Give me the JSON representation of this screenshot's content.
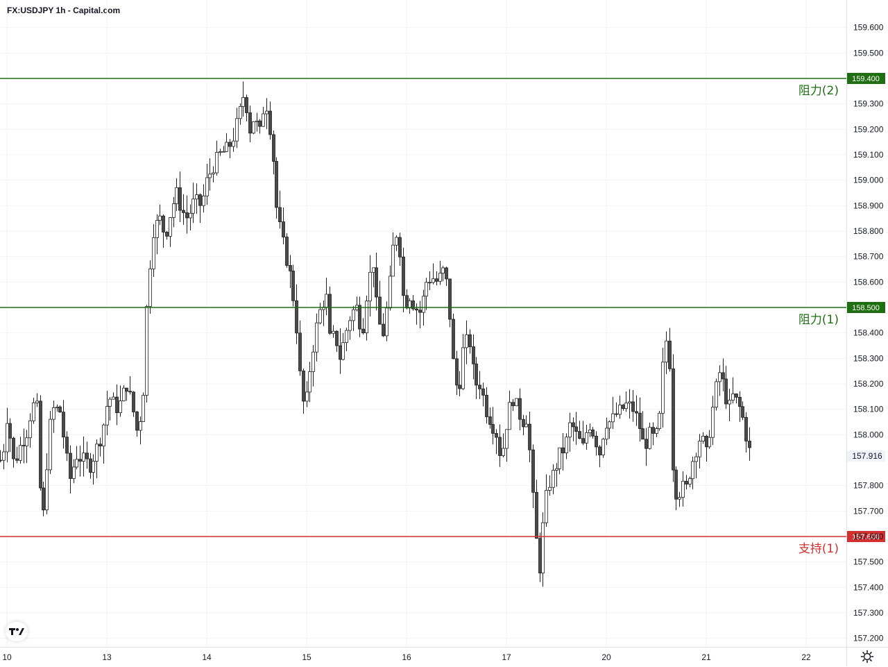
{
  "title": "FX:USDJPY 1h - Capital.com",
  "colors": {
    "resistance": "#1f6e12",
    "support": "#d32f2f",
    "candle_up": "#ffffff",
    "candle_down": "#4a4a4a",
    "wick": "#1e1e1e",
    "grid": "#f0f3fa",
    "price_badge_text": "#131722"
  },
  "icons": {
    "logo": "tradingview-logo-icon",
    "settings": "settings-gear-icon"
  },
  "chart_data": {
    "type": "candlestick",
    "symbol": "USDJPY",
    "timeframe": "1h",
    "ylim": [
      157.16,
      159.7
    ],
    "y_ticks": [
      "157.200",
      "157.300",
      "157.400",
      "157.500",
      "157.600",
      "157.700",
      "157.800",
      "158.000",
      "158.100",
      "158.200",
      "158.300",
      "158.400",
      "158.600",
      "158.700",
      "158.800",
      "158.900",
      "159.000",
      "159.100",
      "159.200",
      "159.300",
      "159.500",
      "159.600"
    ],
    "x_ticks": [
      "10",
      "13",
      "14",
      "15",
      "16",
      "17",
      "20",
      "21",
      "22"
    ],
    "current_price": "157.916",
    "levels": [
      {
        "name": "阻力(2)",
        "price": "159.400",
        "kind": "resistance"
      },
      {
        "name": "阻力(1)",
        "price": "158.500",
        "kind": "resistance"
      },
      {
        "name": "支持(1)",
        "price": "157.600",
        "kind": "support"
      }
    ],
    "ohlc_anchors": [
      [
        0,
        157.9
      ],
      [
        5,
        157.95
      ],
      [
        10,
        158.08
      ],
      [
        20,
        157.88
      ],
      [
        28,
        157.95
      ],
      [
        40,
        158.02
      ],
      [
        46,
        158.12
      ],
      [
        54,
        158.1
      ],
      [
        60,
        157.58
      ],
      [
        66,
        157.85
      ],
      [
        74,
        158.1
      ],
      [
        86,
        158.1
      ],
      [
        92,
        157.98
      ],
      [
        100,
        157.82
      ],
      [
        110,
        157.92
      ],
      [
        130,
        157.88
      ],
      [
        146,
        158.0
      ],
      [
        156,
        158.15
      ],
      [
        170,
        158.1
      ],
      [
        182,
        158.2
      ],
      [
        190,
        158.12
      ],
      [
        198,
        158.0
      ],
      [
        206,
        158.15
      ],
      [
        212,
        158.55
      ],
      [
        220,
        158.8
      ],
      [
        230,
        158.85
      ],
      [
        238,
        158.78
      ],
      [
        246,
        158.88
      ],
      [
        254,
        158.95
      ],
      [
        262,
        158.88
      ],
      [
        270,
        158.85
      ],
      [
        280,
        158.92
      ],
      [
        290,
        158.9
      ],
      [
        298,
        159.0
      ],
      [
        306,
        159.05
      ],
      [
        316,
        159.1
      ],
      [
        326,
        159.12
      ],
      [
        334,
        159.15
      ],
      [
        344,
        159.25
      ],
      [
        352,
        159.35
      ],
      [
        360,
        159.2
      ],
      [
        366,
        159.25
      ],
      [
        374,
        159.18
      ],
      [
        382,
        159.33
      ],
      [
        392,
        159.15
      ],
      [
        398,
        158.9
      ],
      [
        404,
        158.8
      ],
      [
        412,
        158.7
      ],
      [
        420,
        158.6
      ],
      [
        428,
        158.4
      ],
      [
        434,
        158.15
      ],
      [
        440,
        158.1
      ],
      [
        446,
        158.25
      ],
      [
        454,
        158.4
      ],
      [
        462,
        158.5
      ],
      [
        470,
        158.55
      ],
      [
        476,
        158.35
      ],
      [
        482,
        158.4
      ],
      [
        490,
        158.3
      ],
      [
        498,
        158.4
      ],
      [
        506,
        158.48
      ],
      [
        514,
        158.5
      ],
      [
        522,
        158.4
      ],
      [
        530,
        158.6
      ],
      [
        538,
        158.68
      ],
      [
        544,
        158.45
      ],
      [
        552,
        158.4
      ],
      [
        560,
        158.55
      ],
      [
        568,
        158.78
      ],
      [
        574,
        158.8
      ],
      [
        582,
        158.5
      ],
      [
        590,
        158.55
      ],
      [
        598,
        158.5
      ],
      [
        606,
        158.48
      ],
      [
        614,
        158.6
      ],
      [
        622,
        158.62
      ],
      [
        630,
        158.6
      ],
      [
        640,
        158.65
      ],
      [
        646,
        158.55
      ],
      [
        652,
        158.3
      ],
      [
        660,
        158.15
      ],
      [
        668,
        158.35
      ],
      [
        676,
        158.38
      ],
      [
        684,
        158.2
      ],
      [
        692,
        158.2
      ],
      [
        700,
        158.1
      ],
      [
        708,
        158.05
      ],
      [
        716,
        158.0
      ],
      [
        722,
        157.9
      ],
      [
        730,
        158.05
      ],
      [
        738,
        158.15
      ],
      [
        746,
        158.1
      ],
      [
        752,
        158.05
      ],
      [
        760,
        158.07
      ],
      [
        766,
        157.82
      ],
      [
        772,
        157.6
      ],
      [
        778,
        157.47
      ],
      [
        784,
        157.7
      ],
      [
        790,
        157.8
      ],
      [
        798,
        157.85
      ],
      [
        806,
        157.92
      ],
      [
        814,
        157.95
      ],
      [
        822,
        158.05
      ],
      [
        830,
        158.0
      ],
      [
        840,
        157.95
      ],
      [
        848,
        158.05
      ],
      [
        856,
        158.0
      ],
      [
        864,
        157.93
      ],
      [
        872,
        158.05
      ],
      [
        880,
        158.05
      ],
      [
        888,
        158.08
      ],
      [
        896,
        158.1
      ],
      [
        904,
        158.12
      ],
      [
        912,
        158.1
      ],
      [
        920,
        158.05
      ],
      [
        928,
        157.95
      ],
      [
        936,
        158.0
      ],
      [
        944,
        157.98
      ],
      [
        950,
        158.05
      ],
      [
        958,
        158.38
      ],
      [
        964,
        158.35
      ],
      [
        970,
        157.85
      ],
      [
        976,
        157.75
      ],
      [
        982,
        157.8
      ],
      [
        988,
        157.78
      ],
      [
        996,
        157.88
      ],
      [
        1004,
        157.95
      ],
      [
        1010,
        158.0
      ],
      [
        1018,
        157.92
      ],
      [
        1024,
        158.05
      ],
      [
        1030,
        158.15
      ],
      [
        1036,
        158.25
      ],
      [
        1042,
        158.2
      ],
      [
        1050,
        158.1
      ],
      [
        1056,
        158.15
      ],
      [
        1064,
        158.12
      ],
      [
        1072,
        158.05
      ],
      [
        1078,
        157.95
      ],
      [
        1084,
        157.91
      ]
    ]
  }
}
